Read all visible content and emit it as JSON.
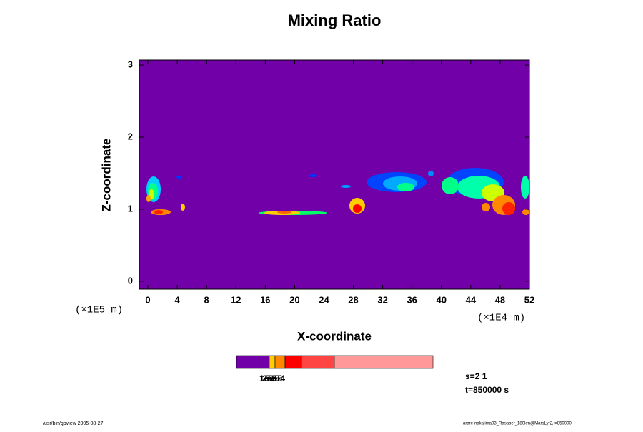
{
  "chart_data": {
    "type": "contour",
    "title": "Mixing Ratio",
    "x_label": "X-coordinate",
    "y_label": "Z-coordinate",
    "x_unit": "(×1E4 m)",
    "y_unit": "(×1E5 m)",
    "xlim": [
      -1.17,
      52
    ],
    "xticks": [
      0,
      4,
      8,
      12,
      16,
      20,
      24,
      28,
      32,
      36,
      40,
      44,
      48,
      52
    ],
    "ylim": [
      -0.11,
      3.07
    ],
    "yticks": [
      0,
      1,
      2,
      3
    ],
    "background_color": "#7200a8",
    "colorbar": {
      "colors": [
        "#7200a8",
        "#ffcc00",
        "#ff8800",
        "#ff0000",
        "#ff4444",
        "#ff9999"
      ],
      "labels": [
        "1e-5",
        "2e-5",
        "5e-5",
        "5e-4"
      ]
    },
    "annotations": [
      "s=2 1",
      "t=850000 s"
    ]
  },
  "footer": {
    "left": "/usr/bin/gpview 2005-08-27",
    "right": "arare-nakajima03_Rasaber_180km@MarsLyr2,t=850000"
  }
}
